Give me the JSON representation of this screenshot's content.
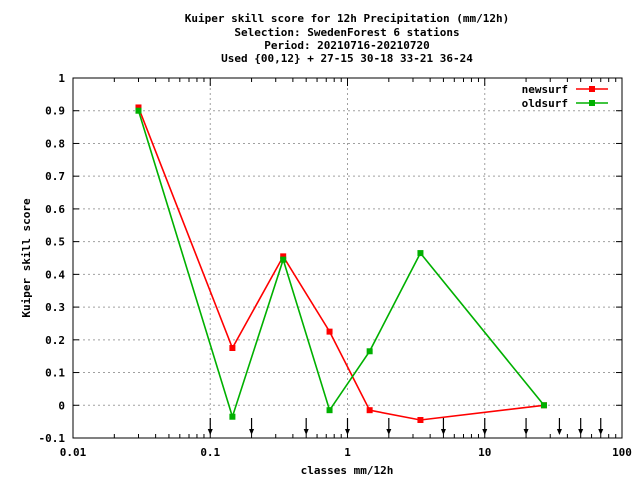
{
  "chart_data": {
    "type": "line",
    "title_lines": [
      "Kuiper skill score  for 12h Precipitation (mm/12h)",
      "Selection: SwedenForest      6 stations",
      "Period: 20210716-20210720",
      "Used {00,12} + 27-15 30-18 33-21 36-24"
    ],
    "xlabel": "classes mm/12h",
    "ylabel": "Kuiper skill score",
    "x_scale": "log",
    "xlim": [
      0.01,
      100
    ],
    "ylim": [
      -0.1,
      1
    ],
    "grid": true,
    "legend_position": "top-right",
    "x_ticks": [
      {
        "value": 0.01,
        "label": "0.01"
      },
      {
        "value": 0.1,
        "label": "0.1"
      },
      {
        "value": 1,
        "label": "1"
      },
      {
        "value": 10,
        "label": "10"
      },
      {
        "value": 100,
        "label": "100"
      }
    ],
    "y_ticks": [
      {
        "value": -0.1,
        "label": "-0.1"
      },
      {
        "value": 0,
        "label": "0"
      },
      {
        "value": 0.1,
        "label": "0.1"
      },
      {
        "value": 0.2,
        "label": "0.2"
      },
      {
        "value": 0.3,
        "label": "0.3"
      },
      {
        "value": 0.4,
        "label": "0.4"
      },
      {
        "value": 0.5,
        "label": "0.5"
      },
      {
        "value": 0.6,
        "label": "0.6"
      },
      {
        "value": 0.7,
        "label": "0.7"
      },
      {
        "value": 0.8,
        "label": "0.8"
      },
      {
        "value": 0.9,
        "label": "0.9"
      },
      {
        "value": 1,
        "label": "1"
      }
    ],
    "class_thresholds": [
      0.1,
      0.2,
      0.5,
      1,
      2,
      5,
      10,
      20,
      35,
      50,
      70
    ],
    "series": [
      {
        "name": "newsurf",
        "color": "#ff0000",
        "x": [
          0.03,
          0.145,
          0.34,
          0.74,
          1.45,
          3.4,
          27
        ],
        "y": [
          0.91,
          0.175,
          0.455,
          0.225,
          -0.015,
          -0.045,
          0.0
        ]
      },
      {
        "name": "oldsurf",
        "color": "#00b000",
        "x": [
          0.03,
          0.145,
          0.34,
          0.74,
          1.45,
          3.4,
          27
        ],
        "y": [
          0.9,
          -0.035,
          0.445,
          -0.015,
          0.165,
          0.465,
          0.0
        ]
      }
    ]
  }
}
